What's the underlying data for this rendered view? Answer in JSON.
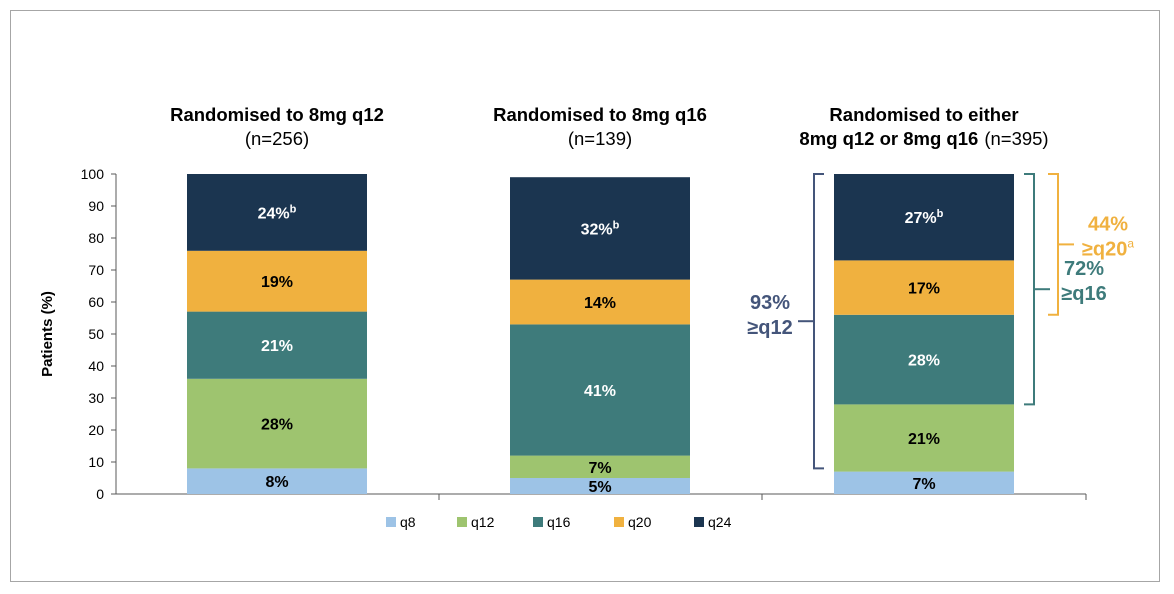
{
  "colors": {
    "q8": "#9dc3e6",
    "q12": "#9ec46f",
    "q16": "#3e7b7b",
    "q20": "#f0b13f",
    "q24": "#1b3550",
    "bracket_blue": "#44557a",
    "bracket_teal": "#3e7b7b",
    "bracket_orange": "#f0b13f"
  },
  "chart_data": {
    "type": "bar",
    "stacked": true,
    "ylabel": "Patients (%)",
    "ylim": [
      0,
      100
    ],
    "yticks": [
      "0",
      "10",
      "20",
      "30",
      "40",
      "50",
      "60",
      "70",
      "80",
      "90",
      "100"
    ],
    "legend": {
      "position": "bottom",
      "items": [
        "q8",
        "q12",
        "q16",
        "q20",
        "q24"
      ]
    },
    "groups": [
      {
        "title_bold": "Randomised to 8mg q12",
        "title_rest": "(n=256)",
        "title_line2_bold": "",
        "title_line2_rest": "",
        "segments": [
          {
            "series": "q8",
            "value": 8,
            "label": "8%",
            "superscript": ""
          },
          {
            "series": "q12",
            "value": 28,
            "label": "28%",
            "superscript": ""
          },
          {
            "series": "q16",
            "value": 21,
            "label": "21%",
            "superscript": ""
          },
          {
            "series": "q20",
            "value": 19,
            "label": "19%",
            "superscript": ""
          },
          {
            "series": "q24",
            "value": 24,
            "label": "24%",
            "superscript": "b"
          }
        ]
      },
      {
        "title_bold": "Randomised to 8mg q16",
        "title_rest": "(n=139)",
        "title_line2_bold": "",
        "title_line2_rest": "",
        "segments": [
          {
            "series": "q8",
            "value": 5,
            "label": "5%",
            "superscript": ""
          },
          {
            "series": "q12",
            "value": 7,
            "label": "7%",
            "superscript": ""
          },
          {
            "series": "q16",
            "value": 41,
            "label": "41%",
            "superscript": ""
          },
          {
            "series": "q20",
            "value": 14,
            "label": "14%",
            "superscript": ""
          },
          {
            "series": "q24",
            "value": 32,
            "label": "32%",
            "superscript": "b"
          }
        ]
      },
      {
        "title_bold": "Randomised to either",
        "title_rest": "",
        "title_line2_bold": "8mg q12 or 8mg q16",
        "title_line2_rest": "(n=395)",
        "segments": [
          {
            "series": "q8",
            "value": 7,
            "label": "7%",
            "superscript": ""
          },
          {
            "series": "q12",
            "value": 21,
            "label": "21%",
            "superscript": ""
          },
          {
            "series": "q16",
            "value": 28,
            "label": "28%",
            "superscript": ""
          },
          {
            "series": "q20",
            "value": 17,
            "label": "17%",
            "superscript": ""
          },
          {
            "series": "q24",
            "value": 27,
            "label": "27%",
            "superscript": "b"
          }
        ]
      }
    ],
    "brackets": [
      {
        "group": 2,
        "side": "left",
        "from": 8,
        "to": 100,
        "line1": "93%",
        "line2": "≥q12",
        "sup": "",
        "color_key": "bracket_blue"
      },
      {
        "group": 2,
        "side": "right",
        "from": 28,
        "to": 100,
        "line1": "72%",
        "line2": "≥q16",
        "sup": "",
        "color_key": "bracket_teal"
      },
      {
        "group": 2,
        "side": "right2",
        "from": 56,
        "to": 100,
        "line1": "44%",
        "line2": "≥q20",
        "sup": "a",
        "color_key": "bracket_orange"
      }
    ]
  }
}
